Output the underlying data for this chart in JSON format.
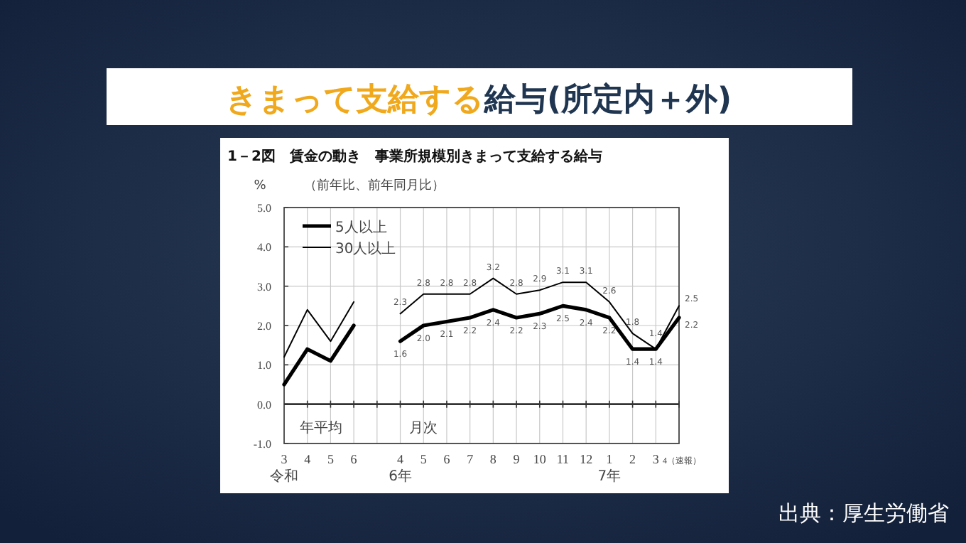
{
  "chart_data": {
    "type": "line",
    "title": "きまって支給する給与(所定内＋外)",
    "subtitle": "1－2図　賃金の動き　事業所規模別きまって支給する給与",
    "ylabel": "%",
    "categories": [
      "3\n令和",
      "4",
      "5",
      "6",
      null,
      "4\n6年",
      "5",
      "6",
      "7",
      "8",
      "9",
      "10",
      "11",
      "12",
      "1\n7年",
      "2",
      "3",
      "4（速報）"
    ],
    "series": [
      {
        "name": "5人以上",
        "color": "#000000",
        "values": [
          0.5,
          1.4,
          1.1,
          2.0,
          null,
          1.6,
          2.0,
          2.1,
          2.2,
          2.4,
          2.2,
          2.3,
          2.5,
          2.4,
          2.2,
          1.4,
          1.4,
          2.2
        ],
        "value_labels": [
          null,
          null,
          null,
          null,
          null,
          "1.6",
          "2.0",
          "2.1",
          "2.2",
          "2.4",
          "2.2",
          "2.3",
          "2.5",
          "2.4",
          "2.2",
          "1.4",
          "1.4",
          "2.2"
        ]
      },
      {
        "name": "30人以上",
        "color": "#000000",
        "values": [
          1.2,
          2.4,
          1.6,
          2.6,
          null,
          2.3,
          2.8,
          2.8,
          2.8,
          3.2,
          2.8,
          2.9,
          3.1,
          3.1,
          2.6,
          1.8,
          1.4,
          2.5
        ],
        "value_labels": [
          null,
          null,
          null,
          null,
          null,
          "2.3",
          "2.8",
          "2.8",
          "2.8",
          "3.2",
          "2.8",
          "2.9",
          "3.1",
          "3.1",
          "2.6",
          "1.8",
          "1.4",
          "2.5"
        ]
      }
    ],
    "ylim": [
      -1,
      5
    ],
    "yticks": [
      {
        "value": -1,
        "label": "-1.0"
      },
      {
        "value": 0,
        "label": "0.0"
      },
      {
        "value": 1,
        "label": "1.0"
      },
      {
        "value": 2,
        "label": "2.0"
      },
      {
        "value": 3,
        "label": "3.0"
      },
      {
        "value": 4,
        "label": "4.0"
      },
      {
        "value": 5,
        "label": "5.0"
      }
    ],
    "ref_lines": [
      {
        "axis": "y",
        "value": 0,
        "color": "#333333"
      }
    ],
    "grid": true,
    "legend": "top left",
    "marker": "none",
    "line_style": "solid",
    "annotations": [
      "（前年比、前年同月比）",
      "年平均",
      "月次",
      "出典：厚生労働省"
    ]
  }
}
